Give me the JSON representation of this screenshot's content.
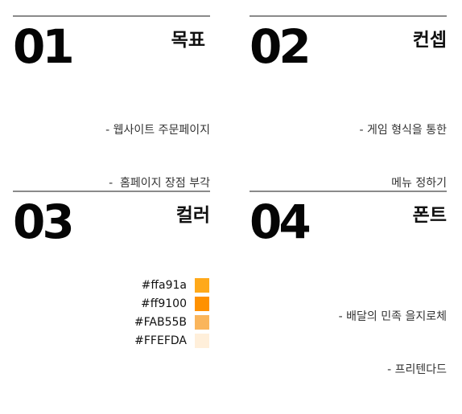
{
  "sections": [
    {
      "number": "01",
      "title": "목표",
      "lines": [
        "- 웹사이트 주문페이지",
        "-  홈페이지 장점 부각"
      ]
    },
    {
      "number": "02",
      "title": "컨셉",
      "lines": [
        "- 게임 형식을 통한",
        "메뉴 정하기"
      ]
    },
    {
      "number": "03",
      "title": "컬러",
      "colors": [
        {
          "label": "#ffa91a",
          "hex": "#ffa91a"
        },
        {
          "label": "#ff9100",
          "hex": "#ff9100"
        },
        {
          "label": "#FAB55B",
          "hex": "#FAB55B"
        },
        {
          "label": "#FFEFDA",
          "hex": "#FFEFDA"
        }
      ]
    },
    {
      "number": "04",
      "title": "폰트",
      "lines": [
        "- 배달의 민족 을지로체",
        "- 프리텐다드"
      ]
    }
  ]
}
